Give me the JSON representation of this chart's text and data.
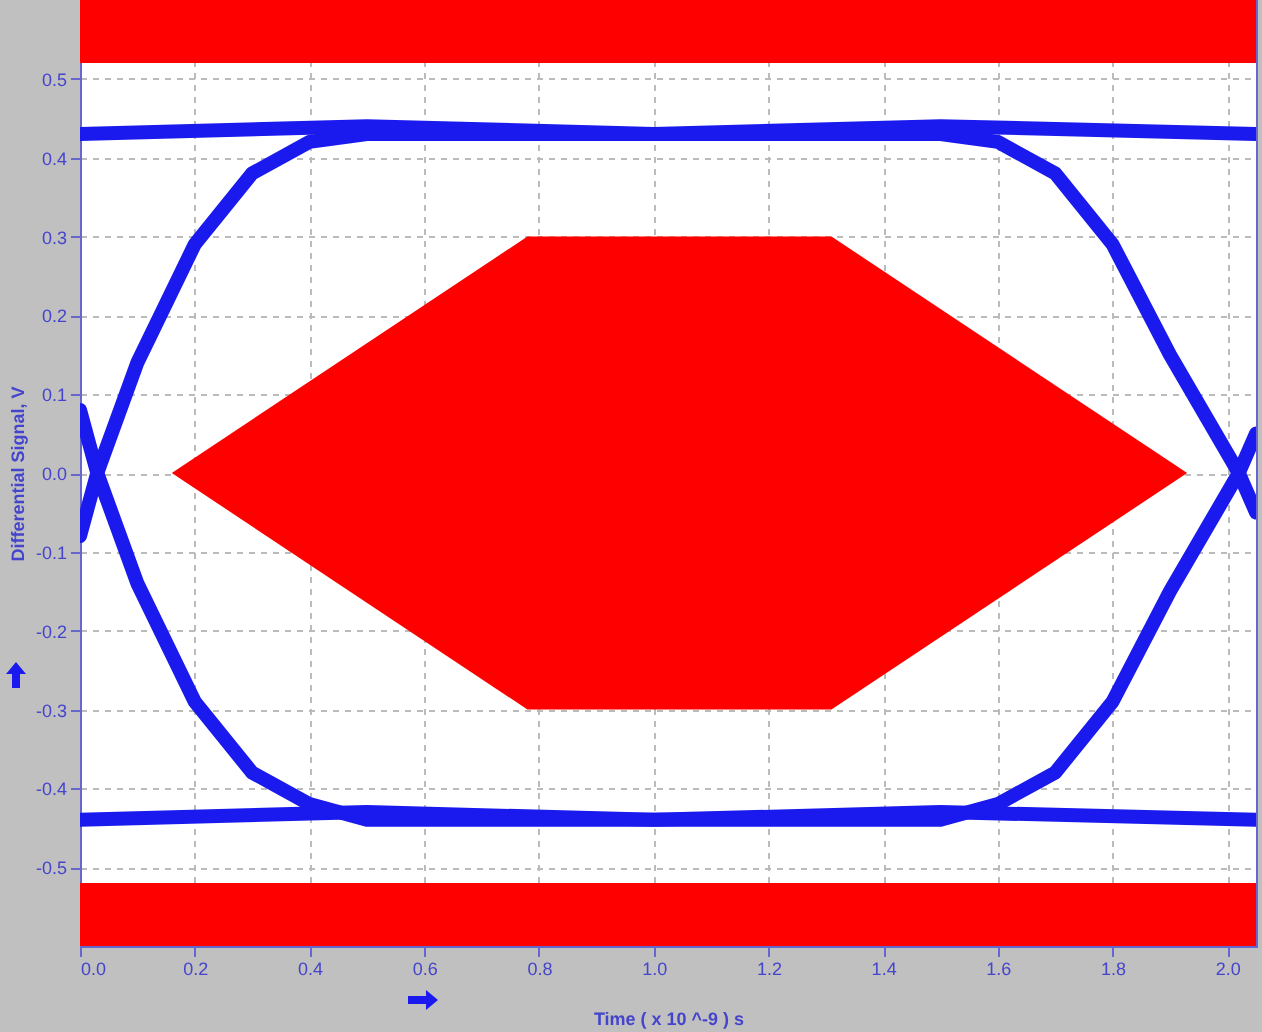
{
  "chart_data": {
    "type": "line",
    "xlabel": "Time  ( x 10 ^-9 ) s",
    "ylabel": "Differential Signal, V",
    "xlim": [
      0,
      2.05
    ],
    "ylim": [
      -0.6,
      0.6
    ],
    "xticks": [
      {
        "value": 0,
        "label": "0.0"
      },
      {
        "value": 0.2,
        "label": "0.2"
      },
      {
        "value": 0.4,
        "label": "0.4"
      },
      {
        "value": 0.6,
        "label": "0.6"
      },
      {
        "value": 0.8,
        "label": "0.8"
      },
      {
        "value": 1,
        "label": "1.0"
      },
      {
        "value": 1.2,
        "label": "1.2"
      },
      {
        "value": 1.4,
        "label": "1.4"
      },
      {
        "value": 1.6,
        "label": "1.6"
      },
      {
        "value": 1.8,
        "label": "1.8"
      },
      {
        "value": 2,
        "label": "2.0"
      }
    ],
    "yticks": [
      {
        "value": -0.5,
        "label": "-0.5"
      },
      {
        "value": -0.4,
        "label": "-0.4"
      },
      {
        "value": -0.3,
        "label": "-0.3"
      },
      {
        "value": -0.2,
        "label": "-0.2"
      },
      {
        "value": -0.1,
        "label": "-0.1"
      },
      {
        "value": 0,
        "label": "0.0"
      },
      {
        "value": 0.1,
        "label": "0.1"
      },
      {
        "value": 0.2,
        "label": "0.2"
      },
      {
        "value": 0.3,
        "label": "0.3"
      },
      {
        "value": 0.4,
        "label": "0.4"
      },
      {
        "value": 0.5,
        "label": "0.5"
      }
    ],
    "grid": true,
    "line_style": "solid",
    "marker": "none",
    "bands": [
      {
        "axis": "y",
        "from": 0.52,
        "to": 0.6,
        "color": "#ff0000"
      },
      {
        "axis": "y",
        "from": -0.6,
        "to": -0.52,
        "color": "#ff0000"
      }
    ],
    "series": [
      {
        "type": "area",
        "color": "#ff0000",
        "x": [
          0.16,
          0.78,
          1.31,
          1.93
        ],
        "values": [
          0,
          0.3,
          0.3,
          0
        ]
      },
      {
        "type": "area",
        "color": "#fe0000",
        "x": [
          0.16,
          0.78,
          1.31,
          1.93
        ],
        "values": [
          0,
          -0.3,
          -0.3,
          0
        ]
      },
      {
        "color": "#1a1aee",
        "x": [
          0,
          0.5,
          1,
          1.5,
          2.05
        ],
        "values": [
          0.43,
          0.44,
          0.43,
          0.44,
          0.43
        ]
      },
      {
        "color": "#1a1aee",
        "x": [
          0,
          0.5,
          1,
          1.5,
          2.05
        ],
        "values": [
          -0.44,
          -0.43,
          -0.44,
          -0.43,
          -0.44
        ]
      },
      {
        "color": "#1a1aee",
        "x": [
          0,
          0.03,
          0.1,
          0.2,
          0.3,
          0.4,
          0.5,
          1.5,
          1.6,
          1.7,
          1.8,
          1.9,
          2.02,
          2.05
        ],
        "values": [
          -0.08,
          0,
          0.14,
          0.29,
          0.38,
          0.42,
          0.43,
          0.43,
          0.42,
          0.38,
          0.29,
          0.15,
          0,
          -0.05
        ]
      },
      {
        "color": "#1a1aee",
        "x": [
          0,
          0.03,
          0.1,
          0.2,
          0.3,
          0.4,
          0.5,
          1.5,
          1.6,
          1.7,
          1.8,
          1.9,
          2.02,
          2.05
        ],
        "values": [
          0.08,
          0,
          -0.14,
          -0.29,
          -0.38,
          -0.42,
          -0.44,
          -0.44,
          -0.42,
          -0.38,
          -0.29,
          -0.15,
          0,
          0.05
        ]
      }
    ]
  }
}
